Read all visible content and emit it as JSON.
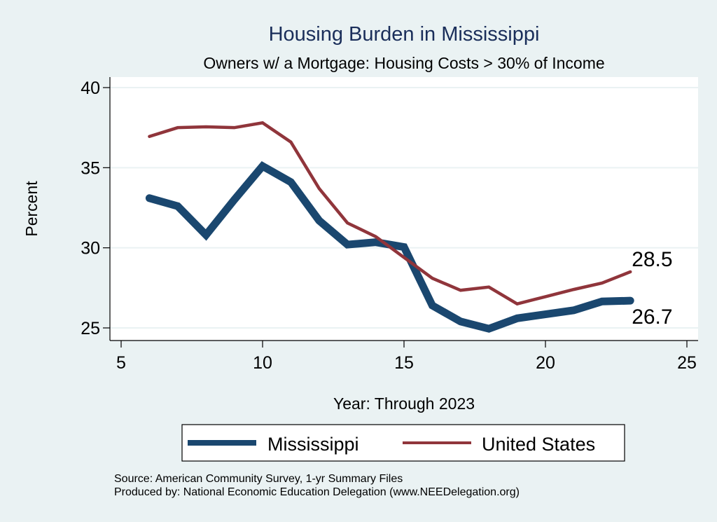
{
  "chart_data": {
    "type": "line",
    "title": "Housing Burden in Mississippi",
    "subtitle": "Owners w/ a Mortgage: Housing Costs > 30% of Income",
    "xlabel": "Year: Through 2023",
    "ylabel": "Percent",
    "xlim": [
      5,
      25
    ],
    "ylim": [
      25,
      40
    ],
    "xticks": [
      5,
      10,
      15,
      20,
      25
    ],
    "yticks": [
      25,
      30,
      35,
      40
    ],
    "xtick_labels": [
      "5",
      "10",
      "15",
      "20",
      "25"
    ],
    "ytick_labels": [
      "25",
      "30",
      "35",
      "40"
    ],
    "grid": "horizontal",
    "legend_position": "bottom",
    "x": [
      6,
      7,
      8,
      9,
      10,
      11,
      12,
      13,
      14,
      15,
      16,
      17,
      18,
      19,
      20,
      21,
      22,
      23
    ],
    "series": [
      {
        "name": "Mississippi",
        "color": "#1a476f",
        "values": [
          33.1,
          32.6,
          30.8,
          33.0,
          35.1,
          34.1,
          31.7,
          30.2,
          30.35,
          30.05,
          26.4,
          25.4,
          24.95,
          25.6,
          25.85,
          26.1,
          26.65,
          26.7
        ],
        "end_label": "26.7"
      },
      {
        "name": "United States",
        "color": "#90353b",
        "values": [
          36.95,
          37.5,
          37.55,
          37.5,
          37.8,
          36.6,
          33.7,
          31.55,
          30.7,
          29.4,
          28.1,
          27.35,
          27.55,
          26.5,
          26.95,
          27.4,
          27.8,
          28.5
        ],
        "end_label": "28.5"
      }
    ],
    "notes": [
      "Source: American Community Survey, 1-yr Summary Files",
      "Produced by: National Economic Education Delegation (www.NEEDelegation.org)"
    ]
  }
}
